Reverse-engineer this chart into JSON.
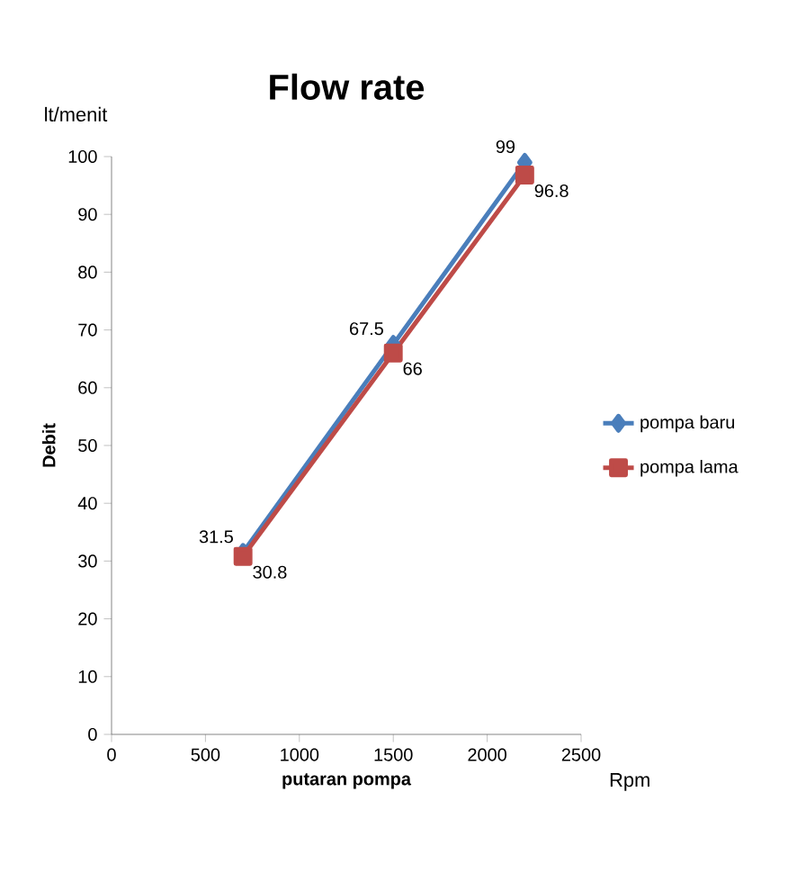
{
  "chart_data": {
    "type": "line",
    "title": "Flow rate",
    "xlabel": "putaran pompa",
    "ylabel": "Debit",
    "annotations": [
      "lt/menit",
      "Rpm"
    ],
    "xlim": [
      0,
      2500
    ],
    "xticks": [
      0,
      500,
      1000,
      1500,
      2000,
      2500
    ],
    "ylim": [
      0,
      100
    ],
    "yticks": [
      0,
      10,
      20,
      30,
      40,
      50,
      60,
      70,
      80,
      90,
      100
    ],
    "x": [
      700,
      1500,
      2200
    ],
    "series": [
      {
        "name": "pompa baru",
        "color": "#4a7ebb",
        "marker": "diamond",
        "values": [
          31.5,
          67.5,
          99
        ]
      },
      {
        "name": "pompa lama",
        "color": "#be4b48",
        "marker": "square",
        "values": [
          30.8,
          66,
          96.8
        ]
      }
    ],
    "data_labels": true,
    "legend": "right",
    "grid": false,
    "line_style": "solid"
  }
}
